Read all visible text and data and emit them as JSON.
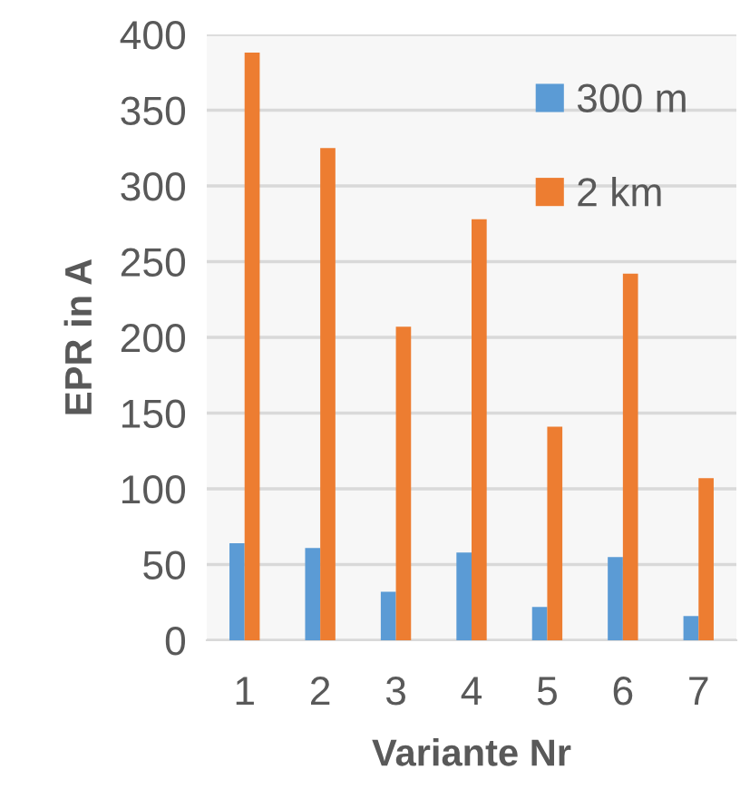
{
  "chart_data": {
    "type": "bar",
    "xlabel": "Variante Nr",
    "ylabel": "EPR in A",
    "categories": [
      "1",
      "2",
      "3",
      "4",
      "5",
      "6",
      "7"
    ],
    "series": [
      {
        "name": "300 m",
        "color": "#5b9bd5",
        "values": [
          64,
          61,
          32,
          58,
          22,
          55,
          16
        ]
      },
      {
        "name": "2 km",
        "color": "#ed7d31",
        "values": [
          388,
          325,
          207,
          278,
          141,
          242,
          107
        ]
      }
    ],
    "ylim": [
      0,
      400
    ],
    "yticks": [
      0,
      50,
      100,
      150,
      200,
      250,
      300,
      350,
      400
    ],
    "grid": "y",
    "legend": "top right"
  }
}
